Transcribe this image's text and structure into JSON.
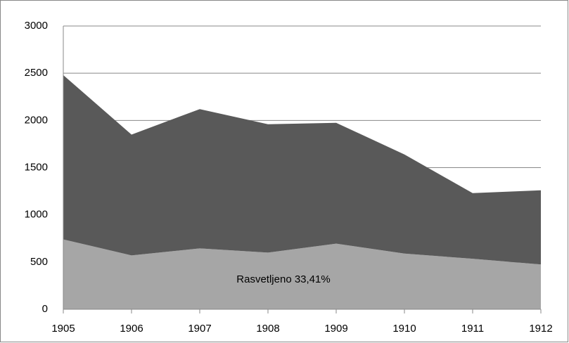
{
  "chart_data": {
    "type": "stacked_area",
    "categories": [
      "1905",
      "1906",
      "1907",
      "1908",
      "1909",
      "1910",
      "1911",
      "1912"
    ],
    "series": [
      {
        "color": "#a6a6a6",
        "values": [
          740,
          570,
          645,
          600,
          695,
          590,
          535,
          475
        ]
      },
      {
        "color": "#595959",
        "values": [
          1740,
          1280,
          1475,
          1360,
          1280,
          1050,
          695,
          785
        ]
      }
    ],
    "annotation": "Rasvetljeno 33,41%",
    "ylim": [
      0,
      3000
    ],
    "yticks": [
      0,
      500,
      1000,
      1500,
      2000,
      2500,
      3000
    ],
    "grid": true
  }
}
